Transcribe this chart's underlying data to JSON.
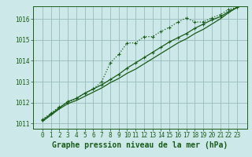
{
  "x": [
    0,
    1,
    2,
    3,
    4,
    5,
    6,
    7,
    8,
    9,
    10,
    11,
    12,
    13,
    14,
    15,
    16,
    17,
    18,
    19,
    20,
    21,
    22,
    23
  ],
  "line1": [
    1011.2,
    1011.5,
    1011.8,
    1012.0,
    1012.2,
    1012.45,
    1012.65,
    1013.0,
    1013.9,
    1014.3,
    1014.85,
    1014.85,
    1015.15,
    1015.15,
    1015.4,
    1015.6,
    1015.85,
    1016.05,
    1015.85,
    1015.85,
    1016.05,
    1016.2,
    1016.45,
    1016.55
  ],
  "line2": [
    1011.15,
    1011.45,
    1011.75,
    1012.05,
    1012.2,
    1012.45,
    1012.65,
    1012.85,
    1013.1,
    1013.35,
    1013.65,
    1013.9,
    1014.15,
    1014.4,
    1014.65,
    1014.9,
    1015.1,
    1015.3,
    1015.55,
    1015.75,
    1015.95,
    1016.1,
    1016.35,
    1016.55
  ],
  "line3": [
    1011.1,
    1011.4,
    1011.7,
    1011.95,
    1012.1,
    1012.3,
    1012.5,
    1012.7,
    1012.95,
    1013.15,
    1013.4,
    1013.6,
    1013.85,
    1014.1,
    1014.35,
    1014.6,
    1014.85,
    1015.05,
    1015.3,
    1015.5,
    1015.75,
    1016.0,
    1016.3,
    1016.55
  ],
  "bg_color": "#cce8e8",
  "line_color": "#1a5c1a",
  "grid_color": "#99bbbb",
  "xlabel": "Graphe pression niveau de la mer (hPa)",
  "ylim": [
    1010.75,
    1016.6
  ],
  "yticks": [
    1011,
    1012,
    1013,
    1014,
    1015,
    1016
  ],
  "xticks": [
    0,
    1,
    2,
    3,
    4,
    5,
    6,
    7,
    8,
    9,
    10,
    11,
    12,
    13,
    14,
    15,
    16,
    17,
    18,
    19,
    20,
    21,
    22,
    23
  ],
  "tick_fontsize": 5.5,
  "xlabel_fontsize": 7,
  "marker": "+",
  "markersize": 3.5,
  "linewidth": 0.9
}
